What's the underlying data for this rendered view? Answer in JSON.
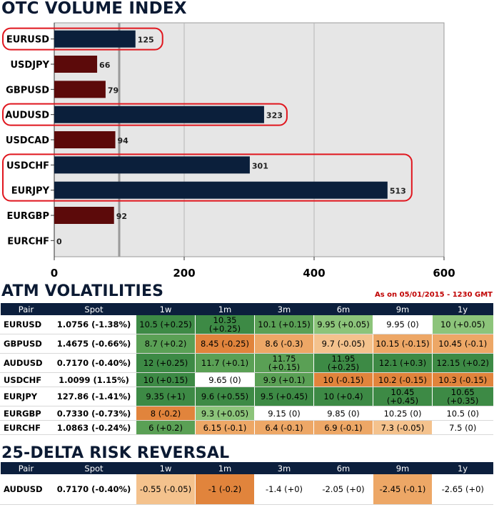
{
  "volume_section": {
    "title": "OTC VOLUME INDEX"
  },
  "vol_section": {
    "title": "ATM VOLATILITIES",
    "as_of": "As on 05/01/2015 - 1230 GMT"
  },
  "rr_section": {
    "title": "25-DELTA RISK REVERSAL"
  },
  "colors": {
    "navy_bar": "#0b1f3b",
    "maroon_bar": "#5c0a0a",
    "highlight": "#e0161e",
    "header_bg": "#0c1f3d",
    "title": "#0b1a33",
    "dark_green": "#3d8a45",
    "mid_green": "#5aa055",
    "light_green": "#8cc47a",
    "white": "#ffffff",
    "light_orange": "#f4c28d",
    "mid_orange": "#eda766",
    "dark_orange": "#e1843c"
  },
  "chart_data": {
    "type": "bar",
    "orientation": "horizontal",
    "title": "OTC VOLUME INDEX",
    "categories": [
      "EURUSD",
      "USDJPY",
      "GBPUSD",
      "AUDUSD",
      "USDCAD",
      "USDCHF",
      "EURJPY",
      "EURGBP",
      "EURCHF"
    ],
    "values": [
      125,
      66,
      79,
      323,
      94,
      301,
      513,
      92,
      0
    ],
    "bar_colors": [
      "navy",
      "maroon",
      "maroon",
      "navy",
      "maroon",
      "navy",
      "navy",
      "maroon",
      "maroon"
    ],
    "highlighted_groups": [
      [
        "EURUSD"
      ],
      [
        "AUDUSD"
      ],
      [
        "USDCHF",
        "EURJPY"
      ]
    ],
    "reference_line": 100,
    "xlim": [
      0,
      600
    ],
    "xticks": [
      0,
      200,
      400,
      600
    ],
    "xlabel": "",
    "ylabel": ""
  },
  "vol_table": {
    "headers": [
      "Pair",
      "Spot",
      "1w",
      "1m",
      "3m",
      "6m",
      "9m",
      "1y"
    ],
    "rows": [
      {
        "pair": "EURUSD",
        "spot": "1.0756 (-1.38%)",
        "short": false,
        "cells": [
          {
            "text": "10.5 (+0.25)",
            "c": "dark_green"
          },
          {
            "text": "10.35 (+0.25)",
            "c": "dark_green"
          },
          {
            "text": "10.1 (+0.15)",
            "c": "mid_green"
          },
          {
            "text": "9.95 (+0.05)",
            "c": "light_green"
          },
          {
            "text": "9.95 (0)",
            "c": "white"
          },
          {
            "text": "10 (+0.05)",
            "c": "light_green"
          }
        ]
      },
      {
        "pair": "GBPUSD",
        "spot": "1.4675 (-0.66%)",
        "short": false,
        "cells": [
          {
            "text": "8.7 (+0.2)",
            "c": "mid_green"
          },
          {
            "text": "8.45 (-0.25)",
            "c": "dark_orange"
          },
          {
            "text": "8.6 (-0.3)",
            "c": "mid_orange"
          },
          {
            "text": "9.7 (-0.05)",
            "c": "light_orange"
          },
          {
            "text": "10.15 (-0.15)",
            "c": "mid_orange"
          },
          {
            "text": "10.45 (-0.1)",
            "c": "mid_orange"
          }
        ]
      },
      {
        "pair": "AUDUSD",
        "spot": "0.7170 (-0.40%)",
        "short": false,
        "cells": [
          {
            "text": "12 (+0.25)",
            "c": "dark_green"
          },
          {
            "text": "11.7 (+0.1)",
            "c": "mid_green"
          },
          {
            "text": "11.75 (+0.15)",
            "c": "mid_green"
          },
          {
            "text": "11.95 (+0.25)",
            "c": "dark_green"
          },
          {
            "text": "12.1 (+0.3)",
            "c": "dark_green"
          },
          {
            "text": "12.15 (+0.2)",
            "c": "dark_green"
          }
        ]
      },
      {
        "pair": "USDCHF",
        "spot": "1.0099 (1.15%)",
        "short": true,
        "cells": [
          {
            "text": "10 (+0.15)",
            "c": "dark_green"
          },
          {
            "text": "9.65 (0)",
            "c": "white"
          },
          {
            "text": "9.9 (+0.1)",
            "c": "mid_green"
          },
          {
            "text": "10 (-0.15)",
            "c": "dark_orange"
          },
          {
            "text": "10.2 (-0.15)",
            "c": "dark_orange"
          },
          {
            "text": "10.3 (-0.15)",
            "c": "dark_orange"
          }
        ]
      },
      {
        "pair": "EURJPY",
        "spot": "127.86 (-1.41%)",
        "short": false,
        "cells": [
          {
            "text": "9.35 (+1)",
            "c": "dark_green"
          },
          {
            "text": "9.6 (+0.55)",
            "c": "dark_green"
          },
          {
            "text": "9.5 (+0.45)",
            "c": "dark_green"
          },
          {
            "text": "10 (+0.4)",
            "c": "dark_green"
          },
          {
            "text": "10.45 (+0.45)",
            "c": "dark_green"
          },
          {
            "text": "10.65 (+0.35)",
            "c": "dark_green"
          }
        ]
      },
      {
        "pair": "EURGBP",
        "spot": "0.7330 (-0.73%)",
        "short": true,
        "cells": [
          {
            "text": "8 (-0.2)",
            "c": "dark_orange"
          },
          {
            "text": "9.3 (+0.05)",
            "c": "light_green"
          },
          {
            "text": "9.15 (0)",
            "c": "white"
          },
          {
            "text": "9.85 (0)",
            "c": "white"
          },
          {
            "text": "10.25 (0)",
            "c": "white"
          },
          {
            "text": "10.5 (0)",
            "c": "white"
          }
        ]
      },
      {
        "pair": "EURCHF",
        "spot": "1.0863 (-0.24%)",
        "short": true,
        "cells": [
          {
            "text": "6 (+0.2)",
            "c": "mid_green"
          },
          {
            "text": "6.15 (-0.1)",
            "c": "mid_orange"
          },
          {
            "text": "6.4 (-0.1)",
            "c": "mid_orange"
          },
          {
            "text": "6.9 (-0.1)",
            "c": "mid_orange"
          },
          {
            "text": "7.3 (-0.05)",
            "c": "light_orange"
          },
          {
            "text": "7.5 (0)",
            "c": "white"
          }
        ]
      }
    ]
  },
  "rr_table": {
    "headers": [
      "Pair",
      "Spot",
      "1w",
      "1m",
      "3m",
      "6m",
      "9m",
      "1y"
    ],
    "rows": [
      {
        "pair": "AUDUSD",
        "spot": "0.7170 (-0.40%)",
        "short": false,
        "cells": [
          {
            "text": "-0.55 (-0.05)",
            "c": "light_orange"
          },
          {
            "text": "-1 (-0.2)",
            "c": "dark_orange"
          },
          {
            "text": "-1.4 (+0)",
            "c": "white"
          },
          {
            "text": "-2.05 (+0)",
            "c": "white"
          },
          {
            "text": "-2.45 (-0.1)",
            "c": "mid_orange"
          },
          {
            "text": "-2.65 (+0)",
            "c": "white"
          }
        ]
      }
    ]
  }
}
